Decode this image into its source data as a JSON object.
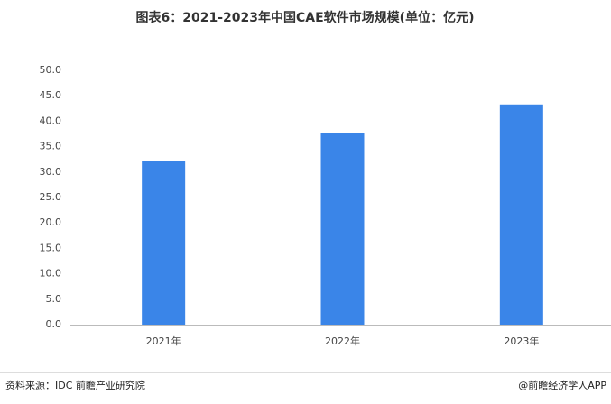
{
  "chart_data": {
    "type": "bar",
    "title": "图表6：2021-2023年中国CAE软件市场规模(单位：亿元)",
    "categories": [
      "2021年",
      "2022年",
      "2023年"
    ],
    "values": [
      32.1,
      37.6,
      43.3
    ],
    "color": "#3a85e8",
    "ylim": [
      0,
      50
    ],
    "yticks": [
      {
        "value": 0,
        "label": "0.0"
      },
      {
        "value": 5,
        "label": "5.0"
      },
      {
        "value": 10,
        "label": "10.0"
      },
      {
        "value": 15,
        "label": "15.0"
      },
      {
        "value": 20,
        "label": "20.0"
      },
      {
        "value": 25,
        "label": "25.0"
      },
      {
        "value": 30,
        "label": "30.0"
      },
      {
        "value": 35,
        "label": "35.0"
      },
      {
        "value": 40,
        "label": "40.0"
      },
      {
        "value": 45,
        "label": "45.0"
      },
      {
        "value": 50,
        "label": "50.0"
      }
    ],
    "grid": false,
    "source": "资料来源：IDC 前瞻产业研究院",
    "credit": "@前瞻经济学人APP"
  }
}
